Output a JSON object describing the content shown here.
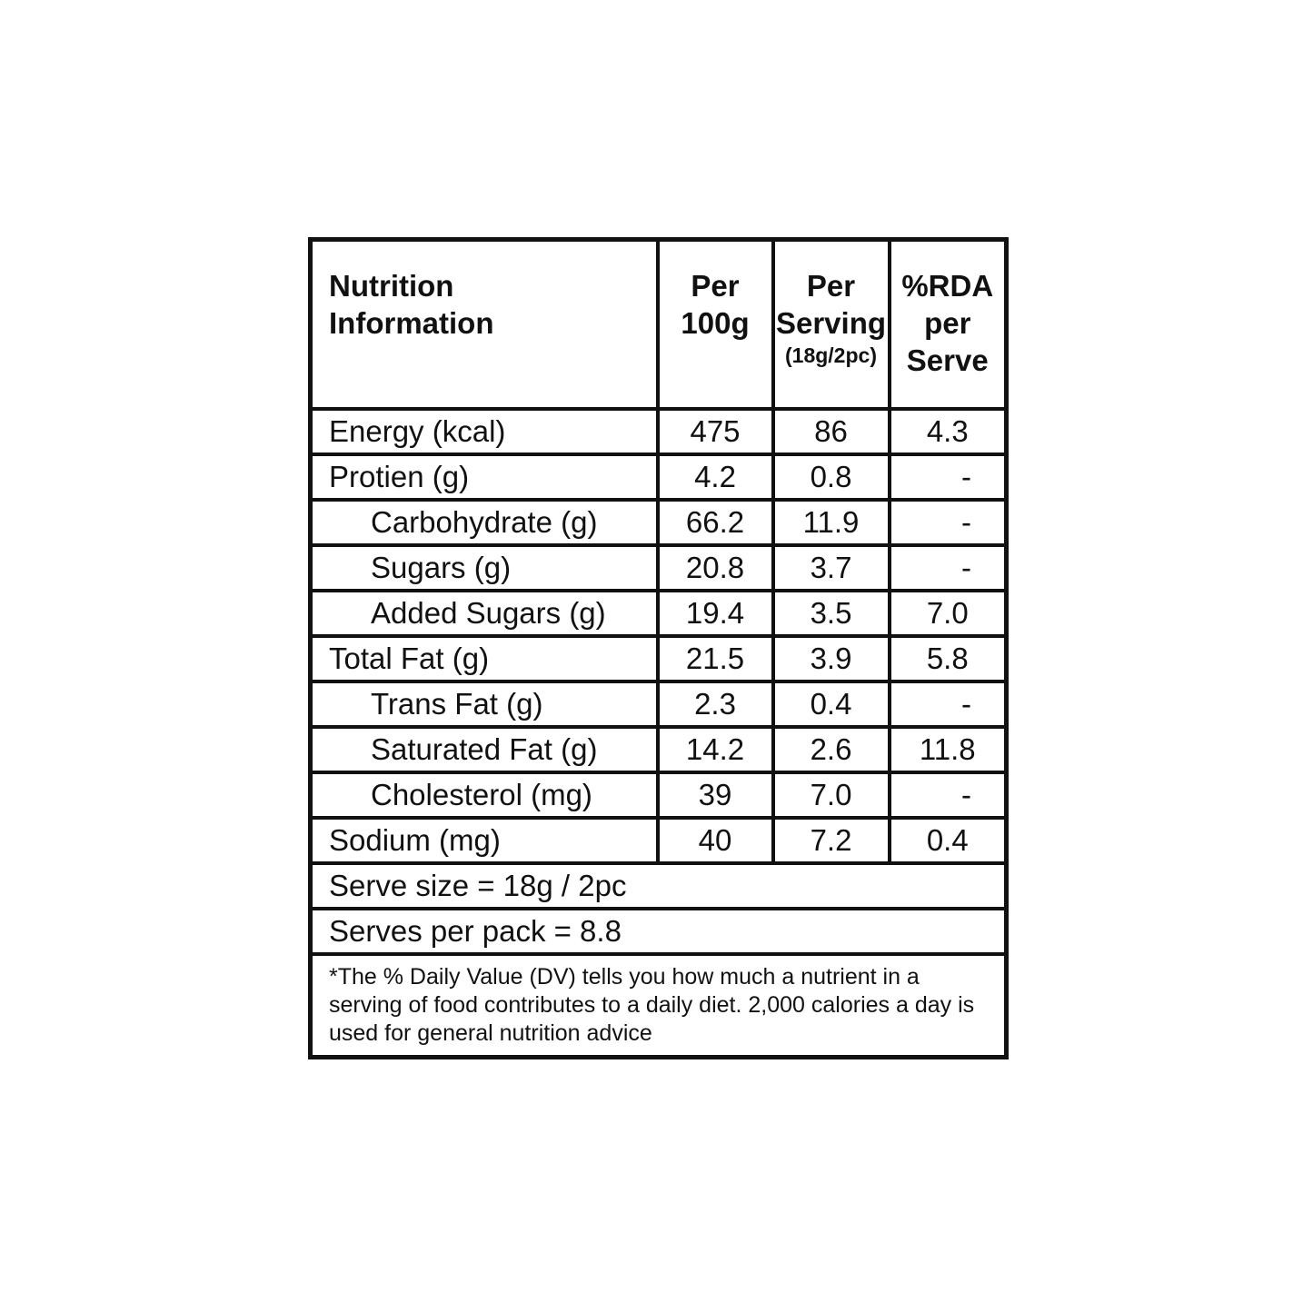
{
  "header": {
    "title_line1": "Nutrition",
    "title_line2": "Information",
    "col1_line1": "Per",
    "col1_line2": "100g",
    "col2_line1": "Per",
    "col2_line2": "Serving",
    "col2_line3": "(18g/2pc)",
    "col3_line1": "%RDA",
    "col3_line2": "per",
    "col3_line3": "Serve"
  },
  "rows": [
    {
      "name": "Energy (kcal)",
      "per100": "475",
      "serving": "86",
      "rda": "4.3",
      "indent": false
    },
    {
      "name": "Protien (g)",
      "per100": "4.2",
      "serving": "0.8",
      "rda": "-",
      "indent": false
    },
    {
      "name": "Carbohydrate (g)",
      "per100": "66.2",
      "serving": "11.9",
      "rda": "-",
      "indent": true
    },
    {
      "name": "Sugars (g)",
      "per100": "20.8",
      "serving": "3.7",
      "rda": "-",
      "indent": true
    },
    {
      "name": "Added Sugars (g)",
      "per100": "19.4",
      "serving": "3.5",
      "rda": "7.0",
      "indent": true
    },
    {
      "name": "Total Fat (g)",
      "per100": "21.5",
      "serving": "3.9",
      "rda": "5.8",
      "indent": false
    },
    {
      "name": "Trans Fat (g)",
      "per100": "2.3",
      "serving": "0.4",
      "rda": "-",
      "indent": true
    },
    {
      "name": "Saturated Fat (g)",
      "per100": "14.2",
      "serving": "2.6",
      "rda": "11.8",
      "indent": true
    },
    {
      "name": "Cholesterol (mg)",
      "per100": "39",
      "serving": "7.0",
      "rda": "-",
      "indent": true
    },
    {
      "name": "Sodium (mg)",
      "per100": "40",
      "serving": "7.2",
      "rda": "0.4",
      "indent": false
    }
  ],
  "serve_size": "Serve size = 18g / 2pc",
  "serves_per_pack": "Serves per pack = 8.8",
  "footnote": "*The % Daily Value (DV) tells you how much a nutrient in a serving of food contributes to a daily diet. 2,000 calories a day is used for general nutrition advice"
}
